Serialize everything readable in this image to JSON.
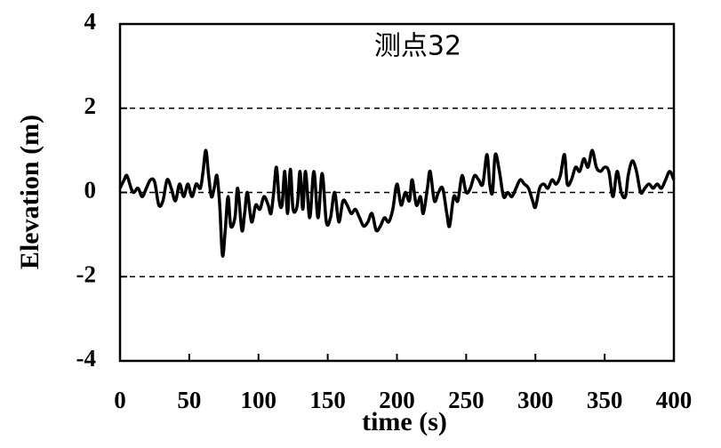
{
  "chart_data": {
    "type": "line",
    "title": "测点32",
    "x_label": "time (s)",
    "y_label": "Elevation (m)",
    "x": [
      0,
      3,
      5,
      8,
      10,
      13,
      16,
      19,
      22,
      25,
      28,
      31,
      34,
      37,
      40,
      43,
      46,
      49,
      52,
      55,
      58,
      60,
      62,
      64,
      66,
      68,
      70,
      72,
      74,
      76,
      78,
      80,
      83,
      85,
      88,
      90,
      92,
      95,
      98,
      101,
      104,
      107,
      109,
      111,
      113,
      115,
      117,
      119,
      121,
      123,
      125,
      128,
      130,
      132,
      134,
      137,
      140,
      143,
      146,
      149,
      152,
      155,
      158,
      161,
      164,
      167,
      170,
      173,
      176,
      179,
      182,
      185,
      188,
      191,
      194,
      197,
      200,
      203,
      206,
      209,
      211,
      214,
      217,
      219,
      222,
      224,
      227,
      230,
      233,
      236,
      238,
      241,
      244,
      247,
      250,
      253,
      256,
      259,
      262,
      265,
      267,
      269,
      271,
      274,
      277,
      280,
      283,
      286,
      289,
      292,
      295,
      298,
      300,
      303,
      306,
      309,
      312,
      315,
      318,
      321,
      323,
      326,
      329,
      332,
      335,
      338,
      341,
      344,
      347,
      350,
      353,
      356,
      359,
      362,
      365,
      367,
      370,
      373,
      376,
      379,
      382,
      385,
      388,
      391,
      394,
      397,
      400
    ],
    "series": [
      {
        "name": "Elevation",
        "color": "#000000",
        "values": [
          0.1,
          0.3,
          0.4,
          0.1,
          0.0,
          0.1,
          -0.1,
          0.1,
          0.3,
          0.25,
          -0.3,
          -0.2,
          0.3,
          0.1,
          -0.2,
          0.2,
          -0.1,
          0.2,
          -0.1,
          0.2,
          0.1,
          0.5,
          1.0,
          0.4,
          -0.1,
          0.1,
          0.4,
          -0.3,
          -1.5,
          -0.9,
          -0.1,
          -0.8,
          -0.6,
          0.1,
          -0.9,
          -0.5,
          0.0,
          -0.7,
          -0.3,
          -0.4,
          -0.1,
          -0.3,
          -0.5,
          0.0,
          0.6,
          -0.2,
          -0.3,
          0.5,
          -0.5,
          0.55,
          -0.4,
          -0.3,
          0.5,
          -0.4,
          0.5,
          -0.6,
          0.5,
          -0.6,
          0.45,
          -0.7,
          -0.6,
          0.0,
          -0.7,
          -0.2,
          -0.3,
          -0.5,
          -0.4,
          -0.6,
          -0.8,
          -0.7,
          -0.5,
          -0.9,
          -0.8,
          -0.6,
          -0.7,
          -0.4,
          0.2,
          -0.3,
          0.0,
          -0.2,
          0.3,
          -0.3,
          -0.1,
          -0.5,
          0.1,
          0.5,
          -0.2,
          0.0,
          0.1,
          -0.5,
          -0.8,
          -0.1,
          -0.2,
          0.4,
          0.0,
          0.1,
          0.4,
          0.3,
          0.2,
          0.9,
          0.2,
          0.0,
          0.9,
          0.5,
          -0.1,
          0.0,
          -0.1,
          0.1,
          0.3,
          0.2,
          0.1,
          -0.2,
          -0.35,
          0.1,
          0.2,
          0.1,
          0.3,
          0.2,
          0.4,
          0.9,
          0.2,
          0.3,
          0.6,
          0.5,
          0.8,
          0.6,
          1.0,
          0.6,
          0.5,
          0.6,
          0.5,
          -0.1,
          0.5,
          0.0,
          -0.1,
          0.4,
          0.75,
          0.5,
          0.0,
          0.1,
          0.2,
          0.1,
          0.2,
          0.1,
          0.3,
          0.5,
          0.3
        ]
      }
    ],
    "xlim": [
      0,
      400
    ],
    "xticks": [
      0,
      50,
      100,
      150,
      200,
      250,
      300,
      350,
      400
    ],
    "ylim": [
      -4,
      4
    ],
    "yticks": [
      -4,
      -2,
      0,
      2,
      4
    ],
    "grid": true
  }
}
